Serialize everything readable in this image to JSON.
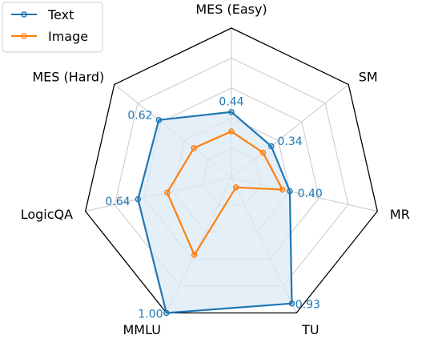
{
  "chart_data": {
    "type": "radar",
    "axes": [
      "MES (Easy)",
      "SM",
      "MR",
      "TU",
      "MMLU",
      "LogicQA",
      "MES (Hard)"
    ],
    "range": [
      0,
      1
    ],
    "grid": true,
    "grid_levels": [
      0.2,
      0.4,
      0.6,
      0.8
    ],
    "legend": {
      "placement": "top-left",
      "entries": [
        "Text",
        "Image"
      ]
    },
    "series": [
      {
        "name": "Text",
        "color": "#1f77b4",
        "fill": "#dce9f5",
        "values": [
          0.44,
          0.34,
          0.4,
          0.93,
          1.0,
          0.64,
          0.62
        ],
        "value_labels": [
          "0.44",
          "0.34",
          "0.40",
          "0.93",
          "1.00",
          "0.64",
          "0.62"
        ]
      },
      {
        "name": "Image",
        "color": "#ff7f0e",
        "values": [
          0.31,
          0.27,
          0.35,
          0.07,
          0.57,
          0.44,
          0.32
        ]
      }
    ]
  }
}
